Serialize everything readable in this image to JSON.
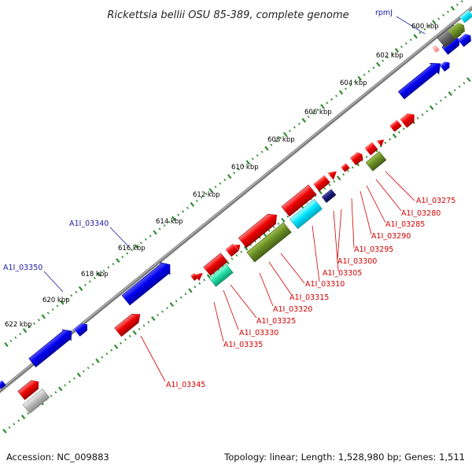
{
  "title": "Rickettsia bellii OSU 85-389, complete genome",
  "footer": {
    "accession": "Accession: NC_009883",
    "summary": "Topology: linear; Length: 1,528,980 bp; Genes: 1,511"
  },
  "colors": {
    "backbone": "#808080",
    "tick": "#2e8b2e",
    "blue_label": "#1a1aa8",
    "red_label": "#d40000"
  },
  "kbp_labels": [
    "600 kbp",
    "602 kbp",
    "604 kbp",
    "606 kbp",
    "608 kbp",
    "610 kbp",
    "612 kbp",
    "614 kbp",
    "616 kbp",
    "618 kbp",
    "620 kbp",
    "622 kbp"
  ],
  "gene_labels_top": [
    "rpmJ",
    "A1I_03340",
    "A1I_03350"
  ],
  "gene_labels_bottom": [
    "A1I_03275",
    "A1I_03280",
    "A1I_03285",
    "A1I_03290",
    "A1I_03295",
    "A1I_03300",
    "A1I_03305",
    "A1I_03310",
    "A1I_03315",
    "A1I_03320",
    "A1I_03325",
    "A1I_03330",
    "A1I_03335",
    "A1I_03345"
  ]
}
